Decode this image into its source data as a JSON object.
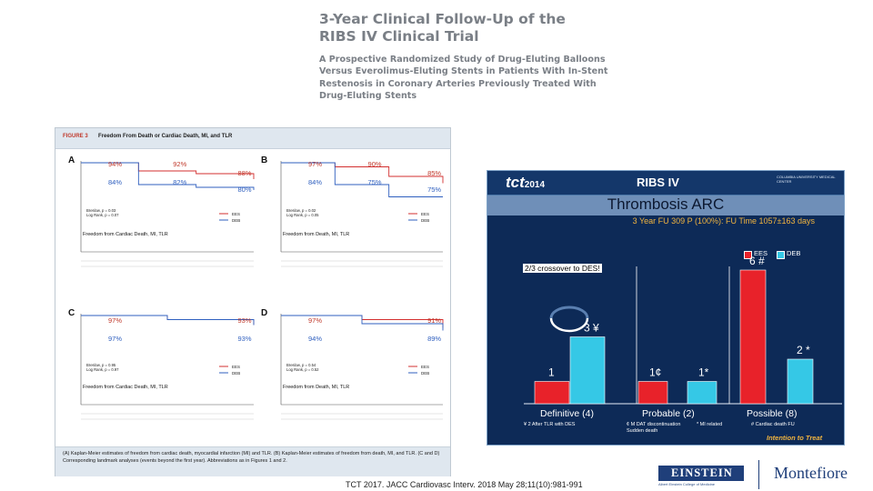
{
  "header": {
    "title_line1": "3-Year Clinical Follow-Up of the",
    "title_line2": "RIBS IV Clinical Trial",
    "subtitle_lines": [
      "A Prospective Randomized Study of Drug-Eluting Balloons",
      "Versus Everolimus-Eluting Stents in Patients With In-Stent",
      "Restenosis in Coronary Arteries Previously Treated With",
      "Drug-Eluting Stents"
    ]
  },
  "figure": {
    "number": "FIGURE 3",
    "title": "Freedom From Death or Cardiac Death, MI, and TLR",
    "caption": "(A) Kaplan-Meier estimates of freedom from cardiac death, myocardial infarction (MI) and TLR. (B) Kaplan-Meier estimates of freedom from death, MI, and TLR. (C and D) Corresponding landmark analyses (events beyond the first year). Abbreviations as in Figures 1 and 2.",
    "panels": [
      {
        "letter": "A",
        "ees_pct": [
          "94%",
          "92%",
          "88%"
        ],
        "deb_pct": [
          "84%",
          "82%",
          "80%"
        ],
        "stats": [
          "Breslow, p = 0.03",
          "Log Rank, p = 0.07"
        ],
        "endpoint": "Freedom from Cardiac Death, MI, TLR",
        "ees_curve": [
          100,
          94,
          92,
          88
        ],
        "deb_curve": [
          100,
          84,
          82,
          80
        ]
      },
      {
        "letter": "B",
        "ees_pct": [
          "97%",
          "90%",
          "85%"
        ],
        "deb_pct": [
          "84%",
          "75%",
          "75%"
        ],
        "stats": [
          "Breslow, p = 0.02",
          "Log Rank, p = 0.05"
        ],
        "endpoint": "Freedom from Death, MI, TLR",
        "ees_curve": [
          100,
          97,
          90,
          85
        ],
        "deb_curve": [
          100,
          84,
          75,
          75
        ]
      },
      {
        "letter": "C",
        "ees_pct": [
          "97%",
          "93%"
        ],
        "deb_pct": [
          "97%",
          "93%"
        ],
        "stats": [
          "Breslow, p = 0.95",
          "Log Rank, p = 0.97"
        ],
        "endpoint": "Freedom from Cardiac Death, MI, TLR",
        "ees_curve": [
          100,
          97,
          93
        ],
        "deb_curve": [
          100,
          97,
          93
        ]
      },
      {
        "letter": "D",
        "ees_pct": [
          "97%",
          "91%"
        ],
        "deb_pct": [
          "94%",
          "89%"
        ],
        "stats": [
          "Breslow, p = 0.54",
          "Log Rank, p = 0.52"
        ],
        "endpoint": "Freedom from Death, MI, TLR",
        "ees_curve": [
          100,
          97,
          91
        ],
        "deb_curve": [
          100,
          94,
          89
        ]
      }
    ],
    "legend": {
      "ees": "EES",
      "deb": "DEB"
    },
    "colors": {
      "ees": "#d32f2f",
      "deb": "#2f5fbf",
      "pct_ees": "#c0392b",
      "pct_deb": "#2f5fbf"
    }
  },
  "slide": {
    "logo_text": "tct",
    "logo_year": "2014",
    "name": "RIBS IV",
    "university": "COLUMBIA UNIVERSITY MEDICAL CENTER",
    "heading": "Thrombosis ARC",
    "followup": "3 Year FU 309 P (100%): FU Time 1057±163 days",
    "legend": {
      "ees": "EES",
      "deb": "DEB"
    },
    "crossover_note": "2/3 crossover to DES!",
    "chart_data": {
      "type": "bar",
      "categories": [
        "Definitive (4)",
        "Probable (2)",
        "Possible (8)"
      ],
      "series": [
        {
          "name": "EES",
          "values": [
            1,
            1,
            6
          ]
        },
        {
          "name": "DEB",
          "values": [
            3,
            1,
            2
          ]
        }
      ],
      "value_labels": {
        "EES": [
          "1",
          "1¢",
          "6 #"
        ],
        "DEB": [
          "3 ¥",
          "1*",
          "2 *"
        ]
      },
      "colors": {
        "EES": "#e8222a",
        "DEB": "#35c8e6"
      }
    },
    "footnotes": [
      "¥ 2 After TLR with DES",
      "¢ M DAT discontinuation",
      "* MI related",
      "# Cardiac death FU",
      "Sudden death"
    ],
    "intention_label": "Intention to Treat"
  },
  "citation": "TCT 2017. JACC Cardiovasc Interv. 2018 May 28;11(10):981-991",
  "logos": {
    "einstein": "EINSTEIN",
    "einstein_sub": "Albert Einstein College of Medicine",
    "montefiore": "Montefiore"
  }
}
